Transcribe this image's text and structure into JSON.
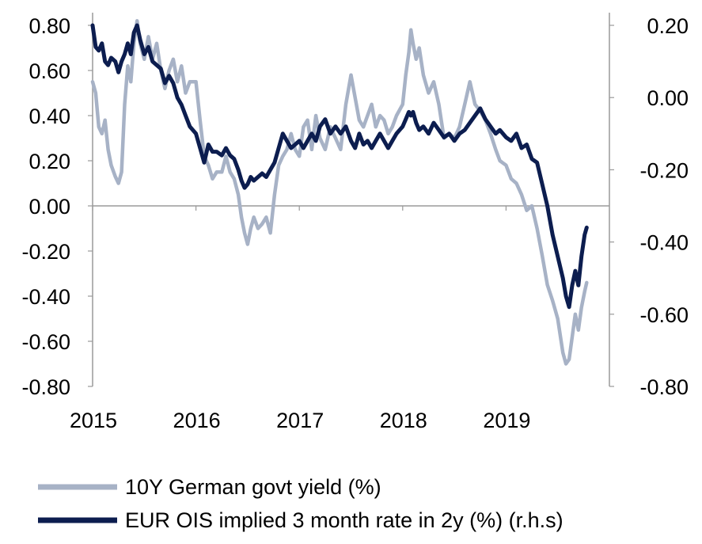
{
  "chart_data": {
    "type": "line",
    "title": "",
    "xlabel": "",
    "ylabel": "",
    "x_ticks": [
      "2015",
      "2016",
      "2017",
      "2018",
      "2019"
    ],
    "y_left_ticks": [
      "0.80",
      "0.60",
      "0.40",
      "0.20",
      "0.00",
      "-0.20",
      "-0.40",
      "-0.60",
      "-0.80"
    ],
    "y_right_ticks": [
      "0.20",
      "0.00",
      "-0.20",
      "-0.40",
      "-0.60",
      "-0.80"
    ],
    "ylim_left": [
      -0.8,
      0.8
    ],
    "ylim_right": [
      -0.8,
      0.2
    ],
    "xlim": [
      2015.0,
      2020.0
    ],
    "grid": false,
    "legend_position": "bottom-left",
    "series": [
      {
        "name": "10Y German govt yield (%)",
        "axis": "left",
        "color": "#a7b2c6",
        "points": [
          [
            2015.0,
            0.55
          ],
          [
            2015.03,
            0.5
          ],
          [
            2015.06,
            0.35
          ],
          [
            2015.09,
            0.32
          ],
          [
            2015.12,
            0.38
          ],
          [
            2015.15,
            0.25
          ],
          [
            2015.18,
            0.18
          ],
          [
            2015.22,
            0.13
          ],
          [
            2015.25,
            0.1
          ],
          [
            2015.28,
            0.15
          ],
          [
            2015.31,
            0.45
          ],
          [
            2015.34,
            0.62
          ],
          [
            2015.37,
            0.55
          ],
          [
            2015.4,
            0.72
          ],
          [
            2015.43,
            0.82
          ],
          [
            2015.46,
            0.72
          ],
          [
            2015.5,
            0.65
          ],
          [
            2015.54,
            0.75
          ],
          [
            2015.58,
            0.65
          ],
          [
            2015.62,
            0.72
          ],
          [
            2015.66,
            0.6
          ],
          [
            2015.7,
            0.52
          ],
          [
            2015.74,
            0.6
          ],
          [
            2015.78,
            0.65
          ],
          [
            2015.82,
            0.55
          ],
          [
            2015.86,
            0.62
          ],
          [
            2015.9,
            0.5
          ],
          [
            2015.94,
            0.55
          ],
          [
            2016.0,
            0.55
          ],
          [
            2016.04,
            0.38
          ],
          [
            2016.08,
            0.22
          ],
          [
            2016.12,
            0.18
          ],
          [
            2016.16,
            0.12
          ],
          [
            2016.2,
            0.15
          ],
          [
            2016.25,
            0.15
          ],
          [
            2016.29,
            0.22
          ],
          [
            2016.33,
            0.15
          ],
          [
            2016.37,
            0.12
          ],
          [
            2016.41,
            0.05
          ],
          [
            2016.44,
            -0.05
          ],
          [
            2016.47,
            -0.12
          ],
          [
            2016.5,
            -0.17
          ],
          [
            2016.53,
            -0.1
          ],
          [
            2016.56,
            -0.05
          ],
          [
            2016.6,
            -0.1
          ],
          [
            2016.64,
            -0.08
          ],
          [
            2016.68,
            -0.05
          ],
          [
            2016.72,
            -0.12
          ],
          [
            2016.76,
            0.05
          ],
          [
            2016.8,
            0.18
          ],
          [
            2016.84,
            0.22
          ],
          [
            2016.88,
            0.25
          ],
          [
            2016.92,
            0.32
          ],
          [
            2016.96,
            0.25
          ],
          [
            2017.0,
            0.22
          ],
          [
            2017.04,
            0.35
          ],
          [
            2017.08,
            0.38
          ],
          [
            2017.12,
            0.25
          ],
          [
            2017.16,
            0.4
          ],
          [
            2017.2,
            0.3
          ],
          [
            2017.25,
            0.25
          ],
          [
            2017.3,
            0.35
          ],
          [
            2017.35,
            0.3
          ],
          [
            2017.4,
            0.25
          ],
          [
            2017.45,
            0.45
          ],
          [
            2017.5,
            0.58
          ],
          [
            2017.54,
            0.48
          ],
          [
            2017.58,
            0.38
          ],
          [
            2017.62,
            0.35
          ],
          [
            2017.66,
            0.4
          ],
          [
            2017.7,
            0.45
          ],
          [
            2017.74,
            0.35
          ],
          [
            2017.78,
            0.4
          ],
          [
            2017.82,
            0.38
          ],
          [
            2017.86,
            0.32
          ],
          [
            2017.9,
            0.35
          ],
          [
            2017.94,
            0.4
          ],
          [
            2018.0,
            0.45
          ],
          [
            2018.03,
            0.58
          ],
          [
            2018.06,
            0.68
          ],
          [
            2018.08,
            0.78
          ],
          [
            2018.1,
            0.72
          ],
          [
            2018.13,
            0.65
          ],
          [
            2018.16,
            0.7
          ],
          [
            2018.2,
            0.58
          ],
          [
            2018.25,
            0.5
          ],
          [
            2018.3,
            0.55
          ],
          [
            2018.35,
            0.45
          ],
          [
            2018.4,
            0.3
          ],
          [
            2018.45,
            0.32
          ],
          [
            2018.5,
            0.3
          ],
          [
            2018.55,
            0.35
          ],
          [
            2018.6,
            0.45
          ],
          [
            2018.65,
            0.55
          ],
          [
            2018.7,
            0.45
          ],
          [
            2018.75,
            0.42
          ],
          [
            2018.8,
            0.38
          ],
          [
            2018.85,
            0.32
          ],
          [
            2018.9,
            0.25
          ],
          [
            2018.94,
            0.2
          ],
          [
            2019.0,
            0.18
          ],
          [
            2019.05,
            0.12
          ],
          [
            2019.1,
            0.1
          ],
          [
            2019.15,
            0.05
          ],
          [
            2019.2,
            -0.02
          ],
          [
            2019.25,
            0.0
          ],
          [
            2019.3,
            -0.1
          ],
          [
            2019.35,
            -0.22
          ],
          [
            2019.4,
            -0.35
          ],
          [
            2019.45,
            -0.42
          ],
          [
            2019.5,
            -0.5
          ],
          [
            2019.55,
            -0.65
          ],
          [
            2019.58,
            -0.7
          ],
          [
            2019.61,
            -0.68
          ],
          [
            2019.64,
            -0.58
          ],
          [
            2019.67,
            -0.48
          ],
          [
            2019.7,
            -0.55
          ],
          [
            2019.73,
            -0.45
          ],
          [
            2019.76,
            -0.38
          ],
          [
            2019.78,
            -0.34
          ]
        ]
      },
      {
        "name": "EUR OIS implied 3 month rate in 2y (%) (r.h.s)",
        "axis": "right",
        "color": "#0c1d4f",
        "points": [
          [
            2015.0,
            0.2
          ],
          [
            2015.03,
            0.14
          ],
          [
            2015.06,
            0.13
          ],
          [
            2015.09,
            0.15
          ],
          [
            2015.12,
            0.1
          ],
          [
            2015.15,
            0.09
          ],
          [
            2015.18,
            0.11
          ],
          [
            2015.22,
            0.1
          ],
          [
            2015.25,
            0.07
          ],
          [
            2015.28,
            0.1
          ],
          [
            2015.31,
            0.12
          ],
          [
            2015.34,
            0.15
          ],
          [
            2015.37,
            0.12
          ],
          [
            2015.4,
            0.18
          ],
          [
            2015.43,
            0.2
          ],
          [
            2015.46,
            0.16
          ],
          [
            2015.5,
            0.12
          ],
          [
            2015.54,
            0.14
          ],
          [
            2015.58,
            0.1
          ],
          [
            2015.62,
            0.09
          ],
          [
            2015.66,
            0.08
          ],
          [
            2015.7,
            0.04
          ],
          [
            2015.74,
            0.06
          ],
          [
            2015.78,
            0.04
          ],
          [
            2015.82,
            0.0
          ],
          [
            2015.86,
            -0.02
          ],
          [
            2015.9,
            -0.05
          ],
          [
            2015.94,
            -0.08
          ],
          [
            2016.0,
            -0.1
          ],
          [
            2016.04,
            -0.14
          ],
          [
            2016.08,
            -0.18
          ],
          [
            2016.12,
            -0.13
          ],
          [
            2016.16,
            -0.15
          ],
          [
            2016.2,
            -0.15
          ],
          [
            2016.25,
            -0.16
          ],
          [
            2016.29,
            -0.14
          ],
          [
            2016.33,
            -0.16
          ],
          [
            2016.37,
            -0.17
          ],
          [
            2016.41,
            -0.2
          ],
          [
            2016.44,
            -0.23
          ],
          [
            2016.47,
            -0.25
          ],
          [
            2016.5,
            -0.24
          ],
          [
            2016.53,
            -0.22
          ],
          [
            2016.56,
            -0.23
          ],
          [
            2016.6,
            -0.22
          ],
          [
            2016.64,
            -0.21
          ],
          [
            2016.68,
            -0.22
          ],
          [
            2016.72,
            -0.2
          ],
          [
            2016.76,
            -0.18
          ],
          [
            2016.8,
            -0.14
          ],
          [
            2016.84,
            -0.1
          ],
          [
            2016.88,
            -0.12
          ],
          [
            2016.92,
            -0.14
          ],
          [
            2016.96,
            -0.13
          ],
          [
            2017.0,
            -0.12
          ],
          [
            2017.04,
            -0.14
          ],
          [
            2017.08,
            -0.12
          ],
          [
            2017.12,
            -0.1
          ],
          [
            2017.16,
            -0.12
          ],
          [
            2017.2,
            -0.08
          ],
          [
            2017.25,
            -0.06
          ],
          [
            2017.3,
            -0.1
          ],
          [
            2017.35,
            -0.08
          ],
          [
            2017.4,
            -0.1
          ],
          [
            2017.45,
            -0.08
          ],
          [
            2017.5,
            -0.12
          ],
          [
            2017.54,
            -0.14
          ],
          [
            2017.58,
            -0.1
          ],
          [
            2017.62,
            -0.13
          ],
          [
            2017.66,
            -0.12
          ],
          [
            2017.7,
            -0.14
          ],
          [
            2017.74,
            -0.12
          ],
          [
            2017.78,
            -0.1
          ],
          [
            2017.82,
            -0.12
          ],
          [
            2017.86,
            -0.14
          ],
          [
            2017.9,
            -0.12
          ],
          [
            2017.94,
            -0.1
          ],
          [
            2018.0,
            -0.08
          ],
          [
            2018.03,
            -0.06
          ],
          [
            2018.06,
            -0.04
          ],
          [
            2018.08,
            -0.05
          ],
          [
            2018.1,
            -0.04
          ],
          [
            2018.13,
            -0.07
          ],
          [
            2018.16,
            -0.09
          ],
          [
            2018.2,
            -0.08
          ],
          [
            2018.25,
            -0.1
          ],
          [
            2018.3,
            -0.07
          ],
          [
            2018.35,
            -0.09
          ],
          [
            2018.4,
            -0.11
          ],
          [
            2018.45,
            -0.1
          ],
          [
            2018.5,
            -0.12
          ],
          [
            2018.55,
            -0.1
          ],
          [
            2018.6,
            -0.09
          ],
          [
            2018.65,
            -0.07
          ],
          [
            2018.7,
            -0.05
          ],
          [
            2018.75,
            -0.03
          ],
          [
            2018.8,
            -0.06
          ],
          [
            2018.85,
            -0.08
          ],
          [
            2018.9,
            -0.1
          ],
          [
            2018.94,
            -0.09
          ],
          [
            2019.0,
            -0.11
          ],
          [
            2019.05,
            -0.12
          ],
          [
            2019.1,
            -0.1
          ],
          [
            2019.15,
            -0.14
          ],
          [
            2019.2,
            -0.13
          ],
          [
            2019.25,
            -0.17
          ],
          [
            2019.3,
            -0.18
          ],
          [
            2019.35,
            -0.24
          ],
          [
            2019.4,
            -0.3
          ],
          [
            2019.45,
            -0.38
          ],
          [
            2019.5,
            -0.44
          ],
          [
            2019.55,
            -0.5
          ],
          [
            2019.58,
            -0.55
          ],
          [
            2019.61,
            -0.58
          ],
          [
            2019.64,
            -0.52
          ],
          [
            2019.67,
            -0.48
          ],
          [
            2019.7,
            -0.52
          ],
          [
            2019.73,
            -0.44
          ],
          [
            2019.76,
            -0.38
          ],
          [
            2019.78,
            -0.36
          ]
        ]
      }
    ]
  }
}
